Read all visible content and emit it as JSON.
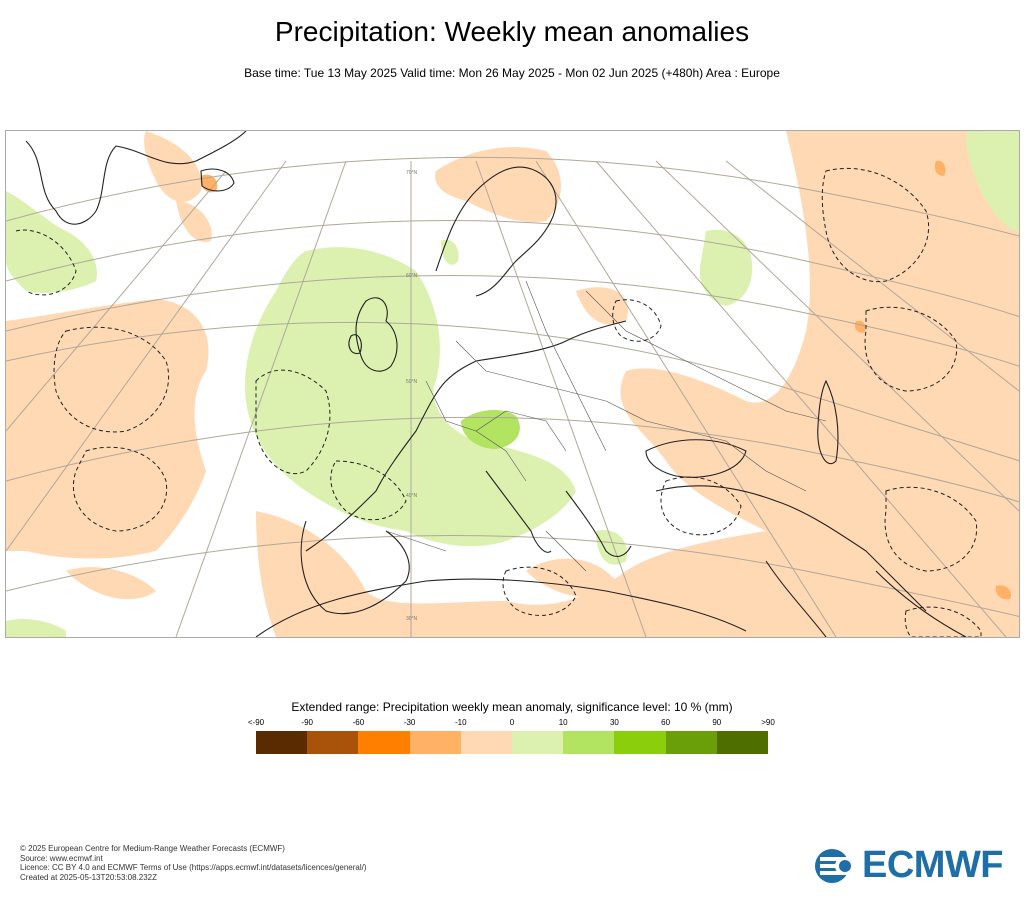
{
  "header": {
    "title": "Precipitation: Weekly mean anomalies",
    "subtitle": "Base time: Tue 13 May 2025 Valid time: Mon 26 May 2025 - Mon 02 Jun 2025 (+480h) Area : Europe"
  },
  "map": {
    "latitude_labels": [
      "70°N",
      "60°N",
      "50°N",
      "40°N",
      "30°N"
    ]
  },
  "legend": {
    "title": "Extended range: Precipitation weekly mean anomaly, significance level: 10 % (mm)",
    "labels": [
      "<-90",
      "-90",
      "-60",
      "-30",
      "-10",
      "0",
      "10",
      "30",
      "60",
      "90",
      ">90"
    ],
    "colors": [
      "#5a2a00",
      "#a8520a",
      "#ff8000",
      "#ffb166",
      "#ffd9b4",
      "#dcf1b0",
      "#b2e361",
      "#8bcf0c",
      "#6a9f0a",
      "#4e6e00"
    ]
  },
  "footer": {
    "line1": "© 2025 European Centre for Medium-Range Weather Forecasts (ECMWF)",
    "line2": "Source: www.ecmwf.int",
    "line3": "Licence: CC BY 4.0 and ECMWF Terms of Use (https://apps.ecmwf.int/datasets/licences/general/)",
    "line4": "Created at 2025-05-13T20:53:08.232Z"
  },
  "logo": {
    "text": "ECMWF",
    "color": "#1e6fa8"
  }
}
